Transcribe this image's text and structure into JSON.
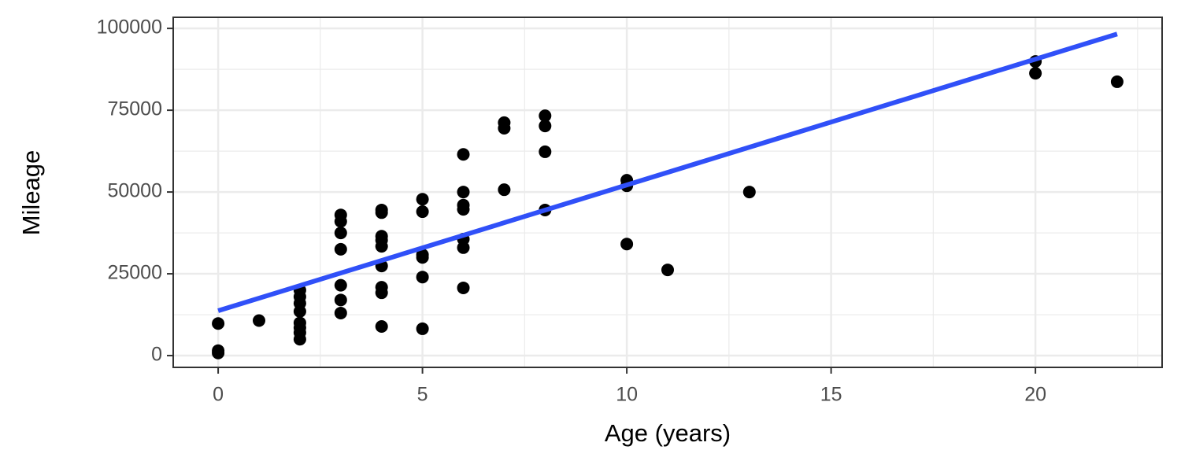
{
  "chart_data": {
    "type": "scatter",
    "x_label": "Age (years)",
    "y_label": "Mileage",
    "x": [
      0,
      0,
      0,
      1,
      2,
      2,
      2,
      2,
      2,
      2,
      2,
      2,
      3,
      3,
      3,
      3,
      3,
      3,
      3,
      4,
      4,
      4,
      4,
      4,
      4,
      4,
      4,
      4,
      5,
      5,
      5,
      5,
      5,
      5,
      6,
      6,
      6,
      6,
      6,
      6,
      6,
      7,
      7,
      7,
      8,
      8,
      8,
      8,
      10,
      10,
      10,
      11,
      13,
      20,
      20,
      22
    ],
    "values": [
      9800,
      1500,
      800,
      10700,
      20000,
      18000,
      16000,
      13500,
      10000,
      8500,
      7000,
      5000,
      43000,
      41000,
      37500,
      32500,
      21500,
      17000,
      13000,
      44500,
      43700,
      36500,
      35300,
      33400,
      27400,
      20900,
      19200,
      8900,
      47800,
      44000,
      30800,
      30000,
      24000,
      8200,
      61500,
      50000,
      46000,
      44700,
      35600,
      33000,
      20700,
      71200,
      69500,
      50700,
      73300,
      70200,
      62300,
      44500,
      53600,
      51900,
      34100,
      26200,
      50000,
      89900,
      86300,
      83700
    ],
    "color": "#000000",
    "trend": {
      "x": [
        0,
        22
      ],
      "values": [
        13700,
        98300
      ],
      "color": "#3050f8"
    },
    "xlim": [
      -1.1,
      23.1
    ],
    "ylim": [
      -3600,
      103400
    ],
    "xticks": [
      0,
      5,
      10,
      15,
      20
    ],
    "yticks": [
      0,
      25000,
      50000,
      75000,
      100000
    ],
    "xminor": [
      2.5,
      7.5,
      12.5,
      17.5,
      22.5
    ],
    "yminor": [
      12500,
      37500,
      62500,
      87500
    ],
    "grid": true
  }
}
